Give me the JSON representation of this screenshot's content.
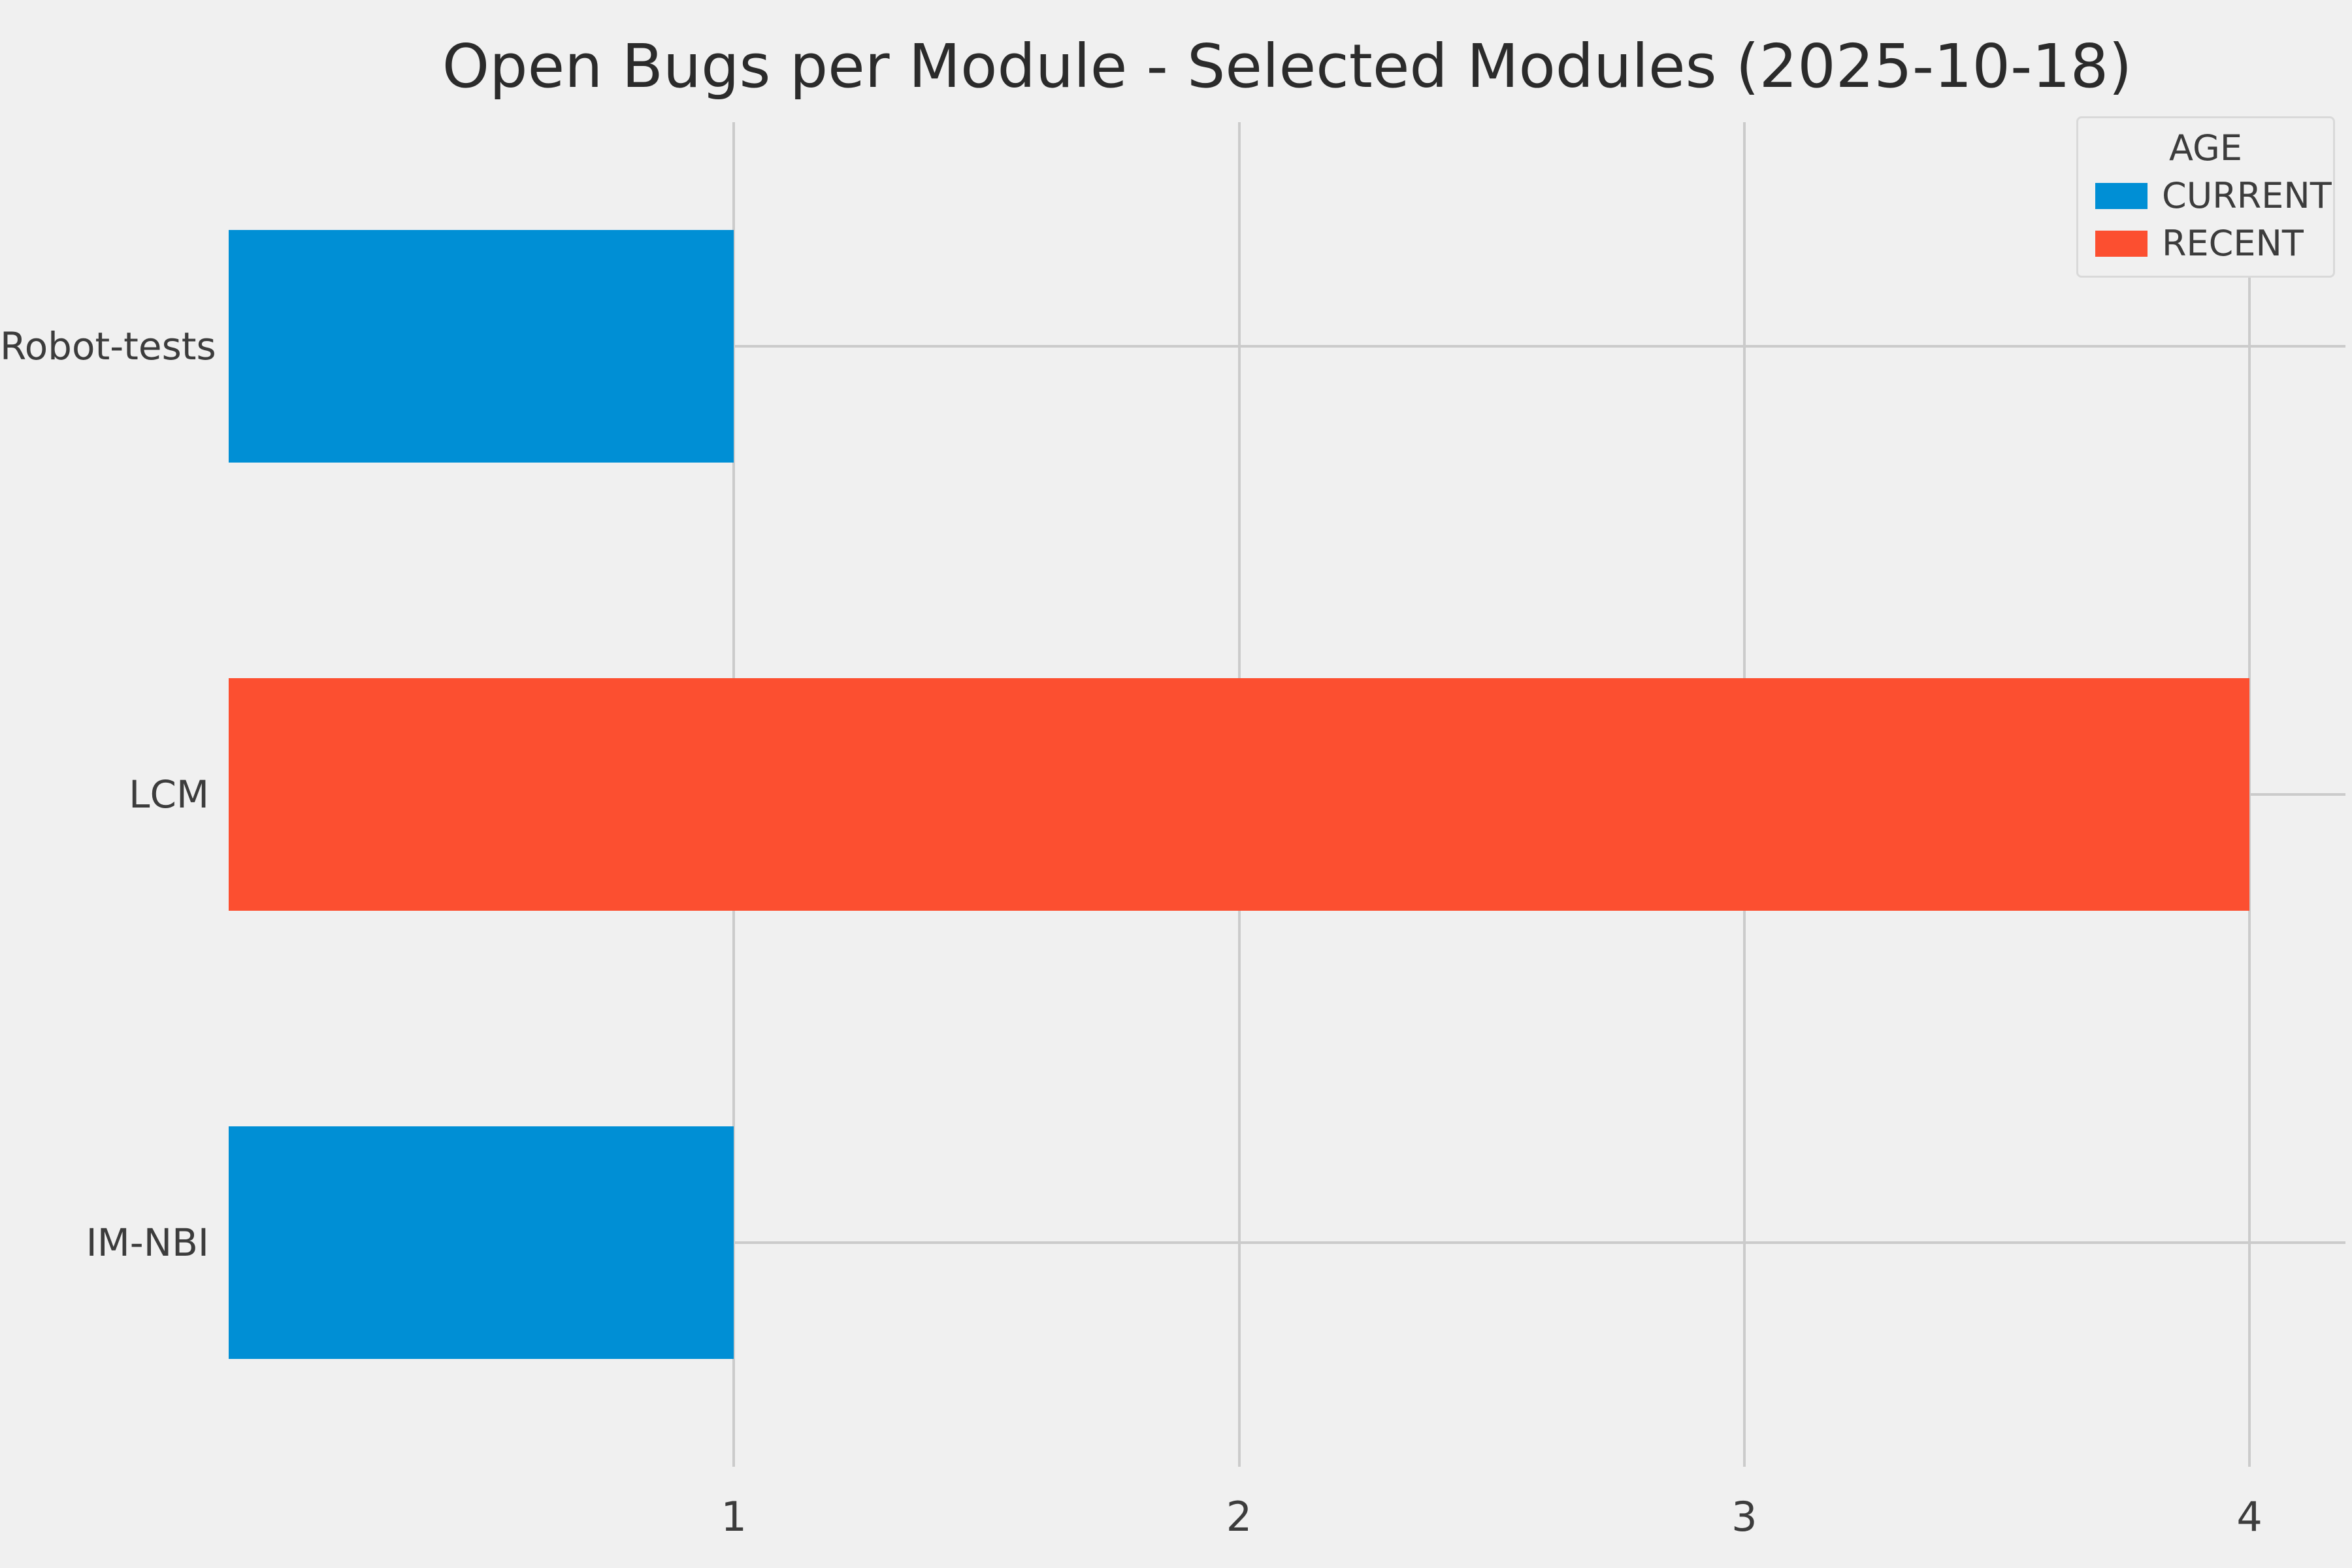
{
  "chart_data": {
    "type": "bar",
    "orientation": "horizontal",
    "title": "Open Bugs per Module - Selected Modules (2025-10-18)",
    "categories": [
      "Robot-tests",
      "LCM",
      "IM-NBI"
    ],
    "values": [
      1,
      4,
      1
    ],
    "bar_series": [
      "CURRENT",
      "RECENT",
      "CURRENT"
    ],
    "x_ticks": [
      1,
      2,
      3,
      4
    ],
    "xlim": [
      0,
      4.19
    ],
    "xlabel": "",
    "ylabel": "",
    "grid": true,
    "legend": {
      "title": "AGE",
      "position": "top-right",
      "entries": [
        {
          "label": "CURRENT",
          "color": "#008fd5"
        },
        {
          "label": "RECENT",
          "color": "#fc4f30"
        }
      ]
    }
  },
  "colors": {
    "background": "#f0f0f0",
    "grid": "#cbcbcb",
    "text": "#3c3c3c",
    "current_blue": "#008fd5",
    "recent_orange": "#fc4f30"
  }
}
